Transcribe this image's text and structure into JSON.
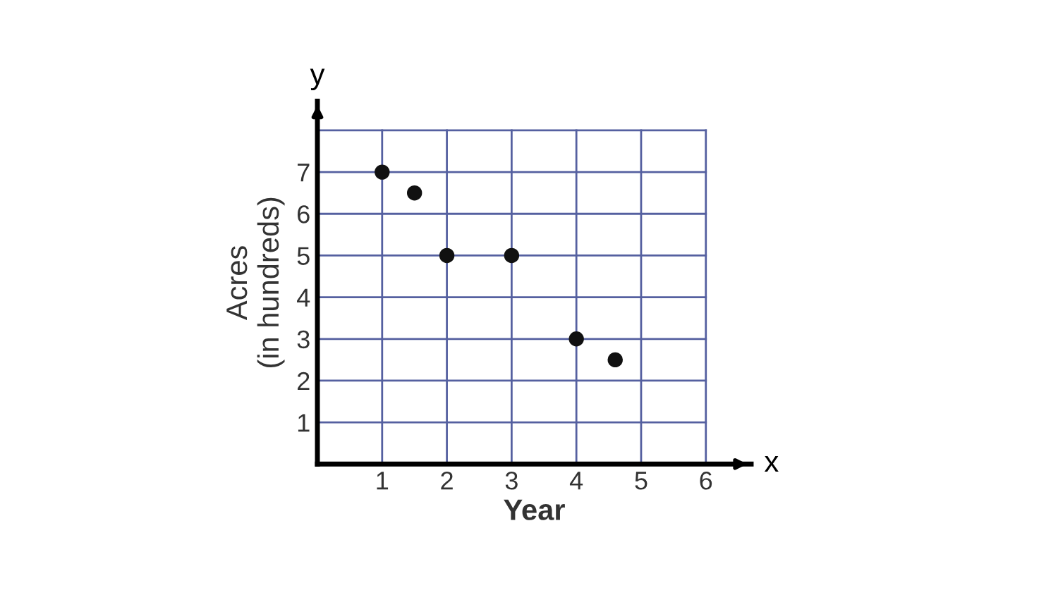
{
  "chart_data": {
    "type": "scatter",
    "xlabel": "Year",
    "ylabel": "Acres\n(in hundreds)",
    "x": [
      1,
      1.5,
      2,
      3,
      4,
      4.6
    ],
    "values": [
      7,
      6.5,
      5,
      5,
      3,
      2.5
    ],
    "color": "#111111",
    "marker": "circle",
    "xlim": [
      0,
      6.7
    ],
    "ylim": [
      0,
      8.7
    ],
    "xticks": [
      1,
      2,
      3,
      4,
      5,
      6
    ],
    "yticks": [
      1,
      2,
      3,
      4,
      5,
      6,
      7,
      {
        "value": 8,
        "label": null
      }
    ],
    "grid": true,
    "annotations": [
      "x",
      "y"
    ]
  }
}
